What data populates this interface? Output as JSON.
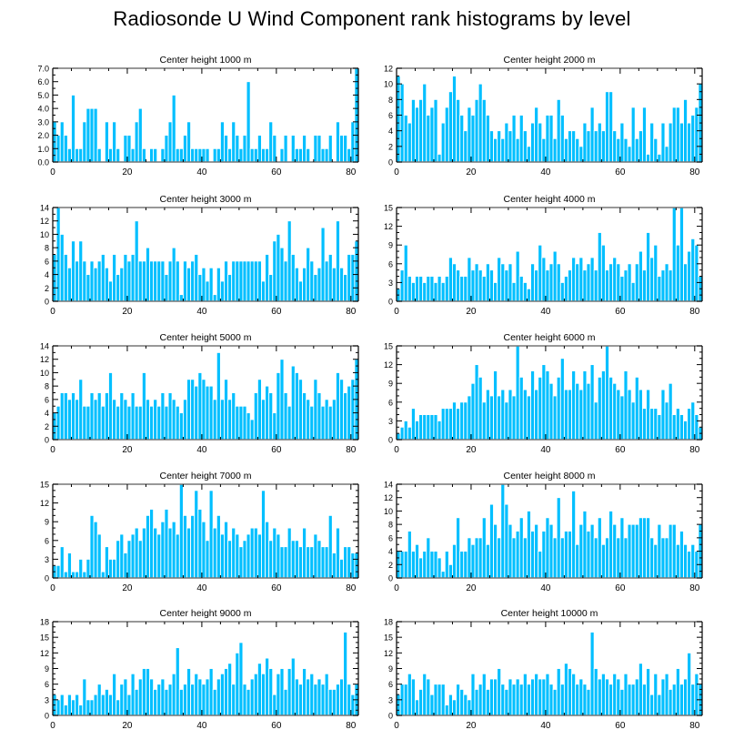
{
  "title": "Radiosonde U Wind Component rank histograms by level",
  "colors": {
    "bar": "#00bfff",
    "bar_edge": "#ffffff",
    "frame": "#000000",
    "border_edge": "#777777"
  },
  "chart_data": [
    {
      "type": "bar",
      "title": "Center height 1000 m",
      "xlabel": "",
      "ylabel": "",
      "xlim": [
        0,
        82
      ],
      "ylim": [
        0,
        7
      ],
      "xticks": [
        0,
        20,
        40,
        60,
        80
      ],
      "yticks": [
        0,
        1,
        2,
        3,
        4,
        5,
        6,
        7
      ],
      "yticklabels": [
        "0.0",
        "1.0",
        "2.0",
        "3.0",
        "4.0",
        "5.0",
        "6.0",
        "7.0"
      ],
      "values": [
        3,
        2,
        3,
        2,
        1,
        5,
        1,
        1,
        3,
        4,
        4,
        4,
        1,
        0,
        3,
        1,
        3,
        1,
        0,
        2,
        2,
        1,
        3,
        4,
        1,
        0,
        1,
        1,
        0,
        1,
        2,
        3,
        5,
        1,
        1,
        2,
        3,
        1,
        1,
        1,
        1,
        1,
        0,
        1,
        1,
        3,
        2,
        1,
        3,
        2,
        1,
        2,
        6,
        1,
        1,
        2,
        1,
        1,
        3,
        2,
        0,
        1,
        2,
        0,
        2,
        1,
        1,
        2,
        1,
        0,
        2,
        2,
        1,
        1,
        2,
        0,
        3,
        2,
        2,
        1,
        3,
        7
      ]
    },
    {
      "type": "bar",
      "title": "Center height 2000 m",
      "xlabel": "",
      "ylabel": "",
      "xlim": [
        0,
        82
      ],
      "ylim": [
        0,
        12
      ],
      "xticks": [
        0,
        20,
        40,
        60,
        80
      ],
      "yticks": [
        0,
        2,
        4,
        6,
        8,
        10,
        12
      ],
      "yticklabels": [
        "0",
        "2",
        "4",
        "6",
        "8",
        "10",
        "12"
      ],
      "values": [
        11,
        10,
        6,
        5,
        8,
        7,
        8,
        10,
        6,
        7,
        8,
        1,
        5,
        7,
        9,
        11,
        8,
        6,
        4,
        7,
        6,
        8,
        10,
        8,
        6,
        4,
        3,
        4,
        3,
        5,
        4,
        6,
        3,
        6,
        4,
        2,
        5,
        7,
        5,
        3,
        6,
        6,
        3,
        8,
        6,
        3,
        4,
        4,
        3,
        2,
        5,
        4,
        7,
        4,
        5,
        4,
        9,
        9,
        4,
        3,
        5,
        3,
        2,
        7,
        3,
        4,
        7,
        1,
        5,
        3,
        1,
        5,
        2,
        5,
        7,
        7,
        5,
        8,
        5,
        6,
        7,
        10
      ]
    },
    {
      "type": "bar",
      "title": "Center height 3000 m",
      "xlabel": "",
      "ylabel": "",
      "xlim": [
        0,
        82
      ],
      "ylim": [
        0,
        14
      ],
      "xticks": [
        0,
        20,
        40,
        60,
        80
      ],
      "yticks": [
        0,
        2,
        4,
        6,
        8,
        10,
        12,
        14
      ],
      "yticklabels": [
        "0",
        "2",
        "4",
        "6",
        "8",
        "10",
        "12",
        "14"
      ],
      "values": [
        7,
        14,
        10,
        7,
        5,
        9,
        6,
        9,
        6,
        4,
        6,
        5,
        6,
        7,
        5,
        3,
        7,
        4,
        5,
        7,
        6,
        7,
        12,
        6,
        6,
        8,
        6,
        6,
        6,
        6,
        4,
        6,
        8,
        6,
        1,
        6,
        5,
        6,
        7,
        4,
        5,
        3,
        5,
        1,
        5,
        3,
        6,
        4,
        6,
        6,
        6,
        6,
        6,
        6,
        6,
        6,
        3,
        7,
        4,
        9,
        10,
        8,
        6,
        12,
        7,
        5,
        3,
        5,
        8,
        6,
        4,
        5,
        11,
        6,
        7,
        5,
        12,
        5,
        4,
        7,
        7,
        9
      ]
    },
    {
      "type": "bar",
      "title": "Center height 4000 m",
      "xlabel": "",
      "ylabel": "",
      "xlim": [
        0,
        82
      ],
      "ylim": [
        0,
        15
      ],
      "xticks": [
        0,
        20,
        40,
        60,
        80
      ],
      "yticks": [
        0,
        3,
        6,
        9,
        12,
        15
      ],
      "yticklabels": [
        "0",
        "3",
        "6",
        "9",
        "12",
        "15"
      ],
      "values": [
        2,
        5,
        9,
        4,
        3,
        4,
        4,
        3,
        4,
        4,
        3,
        4,
        3,
        4,
        7,
        6,
        5,
        4,
        4,
        7,
        5,
        6,
        5,
        4,
        6,
        5,
        3,
        7,
        6,
        5,
        6,
        3,
        8,
        4,
        3,
        2,
        6,
        5,
        9,
        7,
        5,
        6,
        8,
        6,
        3,
        4,
        5,
        7,
        6,
        7,
        5,
        6,
        7,
        5,
        11,
        9,
        5,
        6,
        7,
        6,
        4,
        5,
        6,
        3,
        6,
        8,
        5,
        11,
        7,
        9,
        4,
        5,
        6,
        5,
        15,
        9,
        15,
        6,
        8,
        10,
        9,
        4
      ]
    },
    {
      "type": "bar",
      "title": "Center height 5000 m",
      "xlabel": "",
      "ylabel": "",
      "xlim": [
        0,
        82
      ],
      "ylim": [
        0,
        14
      ],
      "xticks": [
        0,
        20,
        40,
        60,
        80
      ],
      "yticks": [
        0,
        2,
        4,
        6,
        8,
        10,
        12,
        14
      ],
      "yticklabels": [
        "0",
        "2",
        "4",
        "6",
        "8",
        "10",
        "12",
        "14"
      ],
      "values": [
        4,
        5,
        7,
        7,
        6,
        7,
        6,
        9,
        5,
        5,
        7,
        6,
        7,
        5,
        7,
        10,
        6,
        5,
        7,
        6,
        5,
        7,
        5,
        5,
        10,
        6,
        5,
        6,
        5,
        7,
        5,
        7,
        6,
        5,
        4,
        6,
        9,
        9,
        8,
        10,
        9,
        8,
        8,
        6,
        13,
        6,
        9,
        6,
        7,
        5,
        5,
        5,
        4,
        3,
        7,
        9,
        6,
        8,
        7,
        4,
        10,
        12,
        7,
        5,
        11,
        10,
        9,
        7,
        6,
        5,
        9,
        7,
        5,
        6,
        5,
        6,
        10,
        9,
        7,
        8,
        9,
        12
      ]
    },
    {
      "type": "bar",
      "title": "Center height 6000 m",
      "xlabel": "",
      "ylabel": "",
      "xlim": [
        0,
        82
      ],
      "ylim": [
        0,
        15
      ],
      "xticks": [
        0,
        20,
        40,
        60,
        80
      ],
      "yticks": [
        0,
        3,
        6,
        9,
        12,
        15
      ],
      "yticklabels": [
        "0",
        "3",
        "6",
        "9",
        "12",
        "15"
      ],
      "values": [
        1,
        2,
        3,
        2,
        5,
        3,
        4,
        4,
        4,
        4,
        4,
        3,
        5,
        5,
        5,
        6,
        5,
        6,
        6,
        7,
        9,
        12,
        10,
        6,
        8,
        7,
        11,
        7,
        8,
        6,
        8,
        7,
        15,
        10,
        8,
        7,
        11,
        8,
        10,
        12,
        11,
        9,
        7,
        10,
        13,
        8,
        8,
        11,
        9,
        8,
        11,
        9,
        12,
        6,
        10,
        11,
        15,
        10,
        9,
        8,
        7,
        11,
        8,
        6,
        10,
        8,
        5,
        8,
        5,
        5,
        4,
        8,
        6,
        9,
        4,
        5,
        4,
        3,
        5,
        6,
        4,
        2
      ]
    },
    {
      "type": "bar",
      "title": "Center height 7000 m",
      "xlabel": "",
      "ylabel": "",
      "xlim": [
        0,
        82
      ],
      "ylim": [
        0,
        15
      ],
      "xticks": [
        0,
        20,
        40,
        60,
        80
      ],
      "yticks": [
        0,
        3,
        6,
        9,
        12,
        15
      ],
      "yticklabels": [
        "0",
        "3",
        "6",
        "9",
        "12",
        "15"
      ],
      "values": [
        2,
        2,
        5,
        1,
        4,
        1,
        1,
        3,
        1,
        3,
        10,
        9,
        7,
        1,
        5,
        3,
        3,
        6,
        7,
        4,
        6,
        7,
        8,
        6,
        8,
        10,
        11,
        8,
        7,
        9,
        11,
        8,
        9,
        7,
        15,
        10,
        8,
        10,
        14,
        11,
        9,
        6,
        14,
        8,
        10,
        7,
        9,
        6,
        8,
        7,
        5,
        6,
        7,
        8,
        8,
        7,
        14,
        9,
        6,
        8,
        7,
        5,
        5,
        8,
        6,
        6,
        5,
        8,
        5,
        5,
        7,
        6,
        5,
        5,
        10,
        4,
        8,
        3,
        5,
        5,
        4,
        4
      ]
    },
    {
      "type": "bar",
      "title": "Center height 8000 m",
      "xlabel": "",
      "ylabel": "",
      "xlim": [
        0,
        82
      ],
      "ylim": [
        0,
        14
      ],
      "xticks": [
        0,
        20,
        40,
        60,
        80
      ],
      "yticks": [
        0,
        2,
        4,
        6,
        8,
        10,
        12,
        14
      ],
      "yticklabels": [
        "0",
        "2",
        "4",
        "6",
        "8",
        "10",
        "12",
        "14"
      ],
      "values": [
        4,
        4,
        4,
        7,
        4,
        5,
        3,
        4,
        6,
        4,
        4,
        3,
        1,
        4,
        2,
        5,
        9,
        4,
        4,
        6,
        5,
        6,
        6,
        9,
        5,
        11,
        8,
        6,
        14,
        11,
        8,
        6,
        7,
        9,
        6,
        10,
        7,
        8,
        4,
        7,
        9,
        8,
        6,
        12,
        6,
        7,
        7,
        13,
        5,
        8,
        10,
        7,
        8,
        6,
        9,
        5,
        6,
        10,
        8,
        6,
        9,
        6,
        8,
        8,
        8,
        9,
        9,
        9,
        6,
        5,
        8,
        6,
        6,
        8,
        8,
        5,
        7,
        5,
        4,
        5,
        4,
        8
      ]
    },
    {
      "type": "bar",
      "title": "Center height 9000 m",
      "xlabel": "",
      "ylabel": "",
      "xlim": [
        0,
        82
      ],
      "ylim": [
        0,
        18
      ],
      "xticks": [
        0,
        20,
        40,
        60,
        80
      ],
      "yticks": [
        0,
        3,
        6,
        9,
        12,
        15,
        18
      ],
      "yticklabels": [
        "0",
        "3",
        "6",
        "9",
        "12",
        "15",
        "18"
      ],
      "values": [
        4,
        3,
        4,
        2,
        4,
        3,
        4,
        2,
        7,
        3,
        3,
        4,
        6,
        4,
        5,
        4,
        8,
        3,
        6,
        7,
        4,
        8,
        5,
        7,
        9,
        9,
        7,
        5,
        6,
        7,
        5,
        6,
        8,
        13,
        5,
        6,
        9,
        6,
        8,
        7,
        6,
        7,
        9,
        5,
        7,
        8,
        9,
        10,
        6,
        12,
        14,
        6,
        5,
        7,
        8,
        10,
        8,
        11,
        9,
        4,
        8,
        9,
        5,
        9,
        11,
        7,
        6,
        9,
        7,
        8,
        6,
        7,
        6,
        8,
        5,
        5,
        6,
        7,
        16,
        6,
        4,
        6
      ]
    },
    {
      "type": "bar",
      "title": "Center height 10000 m",
      "xlabel": "",
      "ylabel": "",
      "xlim": [
        0,
        82
      ],
      "ylim": [
        0,
        18
      ],
      "xticks": [
        0,
        20,
        40,
        60,
        80
      ],
      "yticks": [
        0,
        3,
        6,
        9,
        12,
        15,
        18
      ],
      "yticklabels": [
        "0",
        "3",
        "6",
        "9",
        "12",
        "15",
        "18"
      ],
      "values": [
        4,
        6,
        6,
        8,
        7,
        3,
        5,
        8,
        7,
        4,
        6,
        6,
        6,
        2,
        4,
        3,
        6,
        5,
        4,
        3,
        8,
        5,
        6,
        8,
        5,
        7,
        7,
        9,
        6,
        5,
        7,
        6,
        7,
        6,
        8,
        6,
        7,
        8,
        7,
        7,
        8,
        6,
        5,
        9,
        6,
        10,
        9,
        8,
        6,
        7,
        6,
        5,
        16,
        9,
        7,
        8,
        7,
        6,
        8,
        7,
        5,
        8,
        6,
        6,
        7,
        10,
        6,
        9,
        4,
        8,
        4,
        7,
        8,
        5,
        6,
        9,
        6,
        7,
        12,
        6,
        8,
        6
      ]
    }
  ]
}
